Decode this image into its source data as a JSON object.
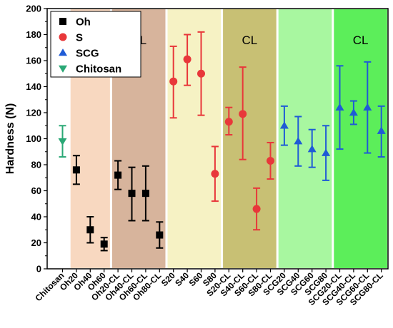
{
  "chart_data": {
    "type": "scatter",
    "xlabel": "",
    "ylabel": "Hardness (N)",
    "ylim": [
      0,
      200
    ],
    "yticks": [
      0,
      20,
      40,
      60,
      80,
      100,
      120,
      140,
      160,
      180,
      200
    ],
    "grid": false,
    "legend_position": "top-left",
    "categories": [
      "Chitosan",
      "Oh20",
      "Oh40",
      "Oh60",
      "Oh20-CL",
      "Oh40-CL",
      "Oh60-CL",
      "Oh80-CL",
      "S20",
      "S40",
      "S60",
      "S80",
      "S20-CL",
      "S40-CL",
      "S60-CL",
      "S80-CL",
      "SCG20",
      "SCG40",
      "SCG60",
      "SCG80",
      "SCG20-CL",
      "SCG40-CL",
      "SCG60-CL",
      "SCG80-CL"
    ],
    "series": [
      {
        "name": "Oh",
        "marker": "square",
        "color": "#000000",
        "points": [
          {
            "category": "Oh20",
            "y": 76,
            "err_low": 65,
            "err_high": 87
          },
          {
            "category": "Oh40",
            "y": 30,
            "err_low": 20,
            "err_high": 40
          },
          {
            "category": "Oh60",
            "y": 19,
            "err_low": 14,
            "err_high": 24
          },
          {
            "category": "Oh20-CL",
            "y": 72,
            "err_low": 61,
            "err_high": 83
          },
          {
            "category": "Oh40-CL",
            "y": 58,
            "err_low": 37,
            "err_high": 78
          },
          {
            "category": "Oh60-CL",
            "y": 58,
            "err_low": 37,
            "err_high": 79
          },
          {
            "category": "Oh80-CL",
            "y": 26,
            "err_low": 16,
            "err_high": 36
          }
        ]
      },
      {
        "name": "S",
        "marker": "circle",
        "color": "#e8373a",
        "points": [
          {
            "category": "S20",
            "y": 144,
            "err_low": 116,
            "err_high": 171
          },
          {
            "category": "S40",
            "y": 161,
            "err_low": 141,
            "err_high": 180
          },
          {
            "category": "S60",
            "y": 150,
            "err_low": 118,
            "err_high": 182
          },
          {
            "category": "S80",
            "y": 73,
            "err_low": 52,
            "err_high": 94
          },
          {
            "category": "S20-CL",
            "y": 113,
            "err_low": 103,
            "err_high": 124
          },
          {
            "category": "S40-CL",
            "y": 119,
            "err_low": 84,
            "err_high": 155
          },
          {
            "category": "S60-CL",
            "y": 46,
            "err_low": 30,
            "err_high": 62
          },
          {
            "category": "S80-CL",
            "y": 83,
            "err_low": 69,
            "err_high": 97
          }
        ]
      },
      {
        "name": "SCG",
        "marker": "triangle-up",
        "color": "#1f5bd6",
        "points": [
          {
            "category": "SCG20",
            "y": 110,
            "err_low": 95,
            "err_high": 125
          },
          {
            "category": "SCG40",
            "y": 98,
            "err_low": 79,
            "err_high": 117
          },
          {
            "category": "SCG60",
            "y": 92,
            "err_low": 78,
            "err_high": 107
          },
          {
            "category": "SCG80",
            "y": 89,
            "err_low": 68,
            "err_high": 110
          },
          {
            "category": "SCG20-CL",
            "y": 124,
            "err_low": 92,
            "err_high": 156
          },
          {
            "category": "SCG40-CL",
            "y": 120,
            "err_low": 111,
            "err_high": 129
          },
          {
            "category": "SCG60-CL",
            "y": 124,
            "err_low": 89,
            "err_high": 159
          },
          {
            "category": "SCG80-CL",
            "y": 106,
            "err_low": 86,
            "err_high": 125
          }
        ]
      },
      {
        "name": "Chitosan",
        "marker": "triangle-down",
        "color": "#2aa876",
        "points": [
          {
            "category": "Chitosan",
            "y": 98,
            "err_low": 86,
            "err_high": 110
          }
        ]
      }
    ],
    "bands": [
      {
        "from": "Oh20",
        "to": "Oh60",
        "color": "#f8d8c0",
        "label": ""
      },
      {
        "from": "Oh20-CL",
        "to": "Oh80-CL",
        "color": "#d7b49c",
        "label": "CL"
      },
      {
        "from": "S20",
        "to": "S80",
        "color": "#f6f2c4",
        "label": ""
      },
      {
        "from": "S20-CL",
        "to": "S80-CL",
        "color": "#c8c074",
        "label": "CL"
      },
      {
        "from": "SCG20",
        "to": "SCG80",
        "color": "#a8f7a0",
        "label": ""
      },
      {
        "from": "SCG20-CL",
        "to": "SCG80-CL",
        "color": "#5cee5a",
        "label": "CL"
      }
    ]
  }
}
